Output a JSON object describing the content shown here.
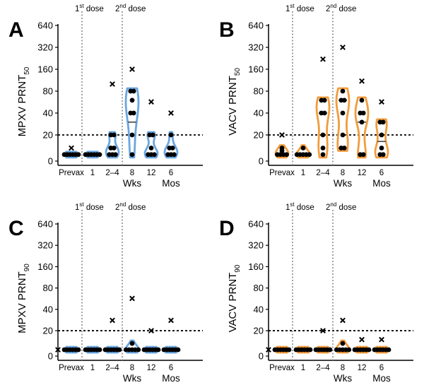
{
  "chart_data": [
    {
      "type": "violin",
      "panel": "A",
      "ylabel": "MPXV PRNT",
      "ylabel_sub": "50",
      "color": "#6aa6e0",
      "y_ticks": [
        "0",
        "20",
        "40",
        "80",
        "160",
        "320",
        "640"
      ],
      "threshold": 20,
      "dose_markers": [
        {
          "label": "1",
          "sup": "st",
          "rest": " dose",
          "after_category": 0
        },
        {
          "label": "2",
          "sup": "nd",
          "rest": " dose",
          "after_category": 2
        }
      ],
      "categories": [
        "Prevax",
        "1",
        "2–4",
        "8",
        "12",
        "6"
      ],
      "group_labels": {
        "weeks": "Wks",
        "months": "Mos"
      },
      "points": [
        [
          5,
          5,
          5,
          5,
          5,
          5
        ],
        [
          5,
          5,
          5,
          5,
          5,
          5
        ],
        [
          5,
          5,
          5,
          10,
          10,
          20,
          20
        ],
        [
          5,
          20,
          40,
          40,
          60,
          80,
          80
        ],
        [
          5,
          5,
          5,
          10,
          20,
          20
        ],
        [
          5,
          5,
          5,
          10,
          10,
          20
        ]
      ],
      "maxima": [
        10,
        null,
        100,
        160,
        57,
        40
      ],
      "medians": [
        5,
        5,
        5,
        30,
        5,
        5
      ]
    },
    {
      "type": "violin",
      "panel": "B",
      "ylabel": "VACV PRNT",
      "ylabel_sub": "50",
      "color": "#f29c3c",
      "y_ticks": [
        "0",
        "20",
        "40",
        "80",
        "160",
        "320",
        "640"
      ],
      "threshold": 20,
      "dose_markers": [
        {
          "label": "1",
          "sup": "st",
          "rest": " dose",
          "after_category": 0
        },
        {
          "label": "2",
          "sup": "nd",
          "rest": " dose",
          "after_category": 2
        }
      ],
      "categories": [
        "Prevax",
        "1",
        "2–4",
        "8",
        "12",
        "6"
      ],
      "group_labels": {
        "weeks": "Wks",
        "months": "Mos"
      },
      "points": [
        [
          5,
          5,
          5,
          5,
          8,
          10
        ],
        [
          5,
          5,
          5,
          5,
          5,
          10
        ],
        [
          5,
          10,
          20,
          40,
          40,
          60,
          60
        ],
        [
          10,
          10,
          20,
          40,
          60,
          60,
          80
        ],
        [
          5,
          5,
          30,
          40,
          40,
          60
        ],
        [
          5,
          5,
          10,
          20,
          30,
          30
        ]
      ],
      "maxima": [
        20,
        null,
        220,
        320,
        110,
        57
      ],
      "medians": [
        5,
        5,
        40,
        60,
        30,
        15
      ]
    },
    {
      "type": "violin",
      "panel": "C",
      "ylabel": "MPXV PRNT",
      "ylabel_sub": "90",
      "color": "#6aa6e0",
      "y_ticks": [
        "0",
        "20",
        "40",
        "80",
        "160",
        "320",
        "640"
      ],
      "threshold": 20,
      "dose_markers": [
        {
          "label": "1",
          "sup": "st",
          "rest": " dose",
          "after_category": 0
        },
        {
          "label": "2",
          "sup": "nd",
          "rest": " dose",
          "after_category": 2
        }
      ],
      "categories": [
        "Prevax",
        "1",
        "2–4",
        "8",
        "12",
        "6"
      ],
      "group_labels": {
        "weeks": "Wks",
        "months": "Mos"
      },
      "points": [
        [
          5,
          5,
          5,
          5,
          5,
          5
        ],
        [
          5,
          5,
          5,
          5,
          5,
          5
        ],
        [
          5,
          5,
          5,
          5,
          5,
          5
        ],
        [
          5,
          5,
          5,
          5,
          5,
          10
        ],
        [
          5,
          5,
          5,
          5,
          5,
          5
        ],
        [
          5,
          5,
          5,
          5,
          5,
          5
        ]
      ],
      "maxima": [
        null,
        null,
        28,
        57,
        20,
        28
      ],
      "medians": [
        5,
        5,
        5,
        5,
        5,
        5
      ],
      "left_marker": 5
    },
    {
      "type": "violin",
      "panel": "D",
      "ylabel": "VACV PRNT",
      "ylabel_sub": "90",
      "color": "#f29c3c",
      "y_ticks": [
        "0",
        "20",
        "40",
        "80",
        "160",
        "320",
        "640"
      ],
      "threshold": 20,
      "dose_markers": [
        {
          "label": "1",
          "sup": "st",
          "rest": " dose",
          "after_category": 0
        },
        {
          "label": "2",
          "sup": "nd",
          "rest": " dose",
          "after_category": 2
        }
      ],
      "categories": [
        "Prevax",
        "1",
        "2–4",
        "8",
        "12",
        "6"
      ],
      "group_labels": {
        "weeks": "Wks",
        "months": "Mos"
      },
      "points": [
        [
          5,
          5,
          5,
          5,
          5,
          5
        ],
        [
          5,
          5,
          5,
          5,
          5,
          5
        ],
        [
          5,
          5,
          5,
          5,
          5,
          5
        ],
        [
          5,
          5,
          5,
          5,
          10,
          5
        ],
        [
          5,
          5,
          5,
          5,
          5,
          5
        ],
        [
          5,
          5,
          5,
          5,
          5,
          5
        ]
      ],
      "maxima": [
        null,
        null,
        20,
        28,
        13,
        13
      ],
      "medians": [
        5,
        5,
        5,
        5,
        5,
        5
      ],
      "left_marker": 5
    }
  ]
}
